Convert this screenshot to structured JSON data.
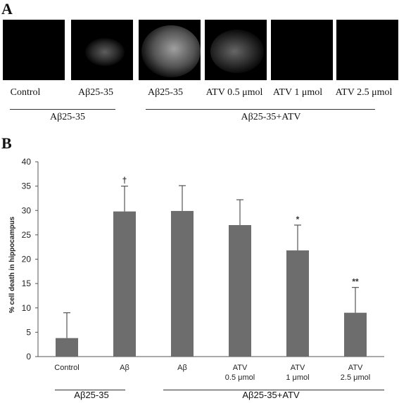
{
  "panel_a": {
    "letter": "A",
    "images": [
      {
        "label": "Control",
        "intensity": 0.0
      },
      {
        "label": "Aβ25-35",
        "intensity": 0.45
      },
      {
        "label": "Aβ25-35",
        "intensity": 0.85
      },
      {
        "label": "ATV 0.5 μmol",
        "intensity": 0.6
      },
      {
        "label": "ATV 1 μmol",
        "intensity": 0.0
      },
      {
        "label": "ATV 2.5 μmol",
        "intensity": 0.0
      }
    ],
    "groups": [
      {
        "label": "Aβ25-35"
      },
      {
        "label": "Aβ25-35+ATV"
      }
    ]
  },
  "panel_b": {
    "letter": "B",
    "groups": [
      {
        "label": "Aβ25-35"
      },
      {
        "label": "Aβ25-35+ATV"
      }
    ]
  },
  "chart_data": {
    "type": "bar",
    "title": "",
    "xlabel": "",
    "ylabel": "% cell death in hippocampus",
    "ylim": [
      0,
      40
    ],
    "yticks": [
      "0",
      "5",
      "10",
      "15",
      "20",
      "25",
      "30",
      "35",
      "40"
    ],
    "categories": [
      {
        "line1": "Control",
        "line2": ""
      },
      {
        "line1": "Aβ",
        "line2": ""
      },
      {
        "line1": "Aβ",
        "line2": ""
      },
      {
        "line1": "ATV",
        "line2": "0.5 μmol"
      },
      {
        "line1": "ATV",
        "line2": "1 μmol"
      },
      {
        "line1": "ATV",
        "line2": "2.5 μmol"
      }
    ],
    "values": [
      3.8,
      29.8,
      29.9,
      27.0,
      21.8,
      9.0
    ],
    "errors": [
      5.2,
      5.2,
      5.2,
      5.2,
      5.2,
      5.2
    ],
    "annotations": [
      "",
      "†",
      "",
      "",
      "*",
      "**"
    ],
    "bar_color": "#6d6d6d"
  }
}
